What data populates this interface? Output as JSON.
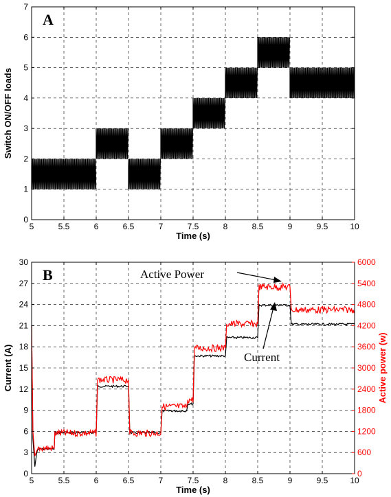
{
  "chart_data": [
    {
      "panel_label": "A",
      "type": "line",
      "xlabel": "Time (s)",
      "ylabel": "Switch ON/OFF loads",
      "xlim": [
        5,
        10
      ],
      "ylim": [
        0,
        7
      ],
      "xticks": [
        "5",
        "5.5",
        "6",
        "6.5",
        "7",
        "7.5",
        "8",
        "8.5",
        "9",
        "9.5",
        "10"
      ],
      "yticks": [
        "0",
        "1",
        "2",
        "3",
        "4",
        "5",
        "6",
        "7"
      ],
      "grid": true,
      "series": [
        {
          "color": "#000000",
          "style": "rapid switching band",
          "segments": [
            {
              "x0": 5.0,
              "x1": 6.0,
              "low": 1,
              "high": 2
            },
            {
              "x0": 6.0,
              "x1": 6.5,
              "low": 2,
              "high": 3
            },
            {
              "x0": 6.5,
              "x1": 7.0,
              "low": 1,
              "high": 2
            },
            {
              "x0": 7.0,
              "x1": 7.5,
              "low": 2,
              "high": 3
            },
            {
              "x0": 7.5,
              "x1": 8.0,
              "low": 3,
              "high": 4
            },
            {
              "x0": 8.0,
              "x1": 8.5,
              "low": 4,
              "high": 5
            },
            {
              "x0": 8.5,
              "x1": 9.0,
              "low": 5,
              "high": 6
            },
            {
              "x0": 9.0,
              "x1": 10.0,
              "low": 4,
              "high": 5
            }
          ]
        }
      ]
    },
    {
      "panel_label": "B",
      "type": "line",
      "xlabel": "Time (s)",
      "ylabel": "Current (A)",
      "y2label": "Active power (w)",
      "xlim": [
        5,
        10
      ],
      "ylim": [
        0,
        30
      ],
      "y2lim": [
        0,
        6000
      ],
      "xticks": [
        "5",
        "5.5",
        "6",
        "6.5",
        "7",
        "7.5",
        "8",
        "8.5",
        "9",
        "9.5",
        "10"
      ],
      "yticks": [
        "0",
        "3",
        "6",
        "9",
        "12",
        "15",
        "18",
        "21",
        "24",
        "27",
        "30"
      ],
      "y2ticks": [
        "0",
        "600",
        "1200",
        "1800",
        "2400",
        "3000",
        "3600",
        "4200",
        "4800",
        "5400",
        "6000"
      ],
      "grid": true,
      "annotations": [
        "Active Power",
        "Current"
      ],
      "series": [
        {
          "name": "Current",
          "color": "#000000",
          "axis": "left",
          "x": [
            5.0,
            5.02,
            5.05,
            5.08,
            5.1,
            5.35,
            5.36,
            6.0,
            6.02,
            6.5,
            6.52,
            7.0,
            7.02,
            7.4,
            7.42,
            7.5,
            7.52,
            8.0,
            8.02,
            8.5,
            8.52,
            9.0,
            9.02,
            10.0
          ],
          "values": [
            21.0,
            5.0,
            1.0,
            3.0,
            3.5,
            3.5,
            5.8,
            5.8,
            12.4,
            12.4,
            5.8,
            5.8,
            8.9,
            8.9,
            9.9,
            9.9,
            16.7,
            16.7,
            19.3,
            19.3,
            23.9,
            23.9,
            21.2,
            21.2
          ]
        },
        {
          "name": "Active Power",
          "color": "#ff0000",
          "axis": "right",
          "x": [
            5.0,
            5.02,
            5.05,
            5.08,
            5.1,
            5.35,
            5.36,
            6.0,
            6.02,
            6.5,
            6.52,
            7.0,
            7.02,
            7.4,
            7.42,
            7.5,
            7.52,
            8.0,
            8.02,
            8.5,
            8.52,
            9.0,
            9.02,
            10.0
          ],
          "values": [
            4200,
            1200,
            500,
            650,
            720,
            720,
            1150,
            1150,
            2660,
            2660,
            1150,
            1150,
            1900,
            1900,
            2100,
            2100,
            3560,
            3560,
            4250,
            4250,
            5300,
            5300,
            4650,
            4650
          ]
        }
      ]
    }
  ]
}
